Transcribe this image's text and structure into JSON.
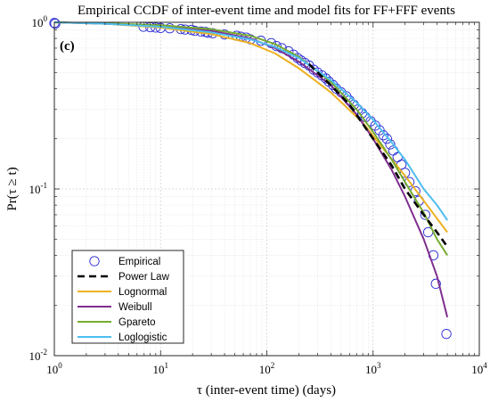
{
  "chart_data": {
    "type": "line",
    "title": "Empirical CCDF of inter-event time and model fits for FF+FFF events",
    "panel_label": "(c)",
    "xlabel": "τ (inter-event time) (days)",
    "ylabel": "Pr(τ ≥ t)",
    "xscale": "log",
    "yscale": "log",
    "xlim": [
      1,
      10000
    ],
    "ylim": [
      0.01,
      1
    ],
    "grid": true,
    "legend_position": "bottom-left",
    "x_ticks": [
      {
        "value": 1,
        "base": "10",
        "exp": "0"
      },
      {
        "value": 10,
        "base": "10",
        "exp": "1"
      },
      {
        "value": 100,
        "base": "10",
        "exp": "2"
      },
      {
        "value": 1000,
        "base": "10",
        "exp": "3"
      },
      {
        "value": 10000,
        "base": "10",
        "exp": "4"
      }
    ],
    "y_ticks": [
      {
        "value": 0.01,
        "base": "10",
        "exp": "-2"
      },
      {
        "value": 0.1,
        "base": "10",
        "exp": "-1"
      },
      {
        "value": 1,
        "base": "10",
        "exp": "0"
      }
    ],
    "series": [
      {
        "name": "Empirical",
        "style": "markers",
        "color": "#2B2BD6",
        "points": [
          [
            1.0,
            0.99
          ],
          [
            1.02,
            0.98
          ],
          [
            6.9,
            0.94
          ],
          [
            8.0,
            0.935
          ],
          [
            9.0,
            0.93
          ],
          [
            10.0,
            0.925
          ],
          [
            12.2,
            0.92
          ],
          [
            15.5,
            0.91
          ],
          [
            17.0,
            0.905
          ],
          [
            19.5,
            0.9
          ],
          [
            21.0,
            0.89
          ],
          [
            24.0,
            0.88
          ],
          [
            26.5,
            0.875
          ],
          [
            28.0,
            0.865
          ],
          [
            31.0,
            0.86
          ],
          [
            40.0,
            0.845
          ],
          [
            52.0,
            0.83
          ],
          [
            57.0,
            0.82
          ],
          [
            64.0,
            0.81
          ],
          [
            70.0,
            0.79
          ],
          [
            88.0,
            0.775
          ],
          [
            110.0,
            0.75
          ],
          [
            123.0,
            0.72
          ],
          [
            138.0,
            0.7
          ],
          [
            160.0,
            0.67
          ],
          [
            178.0,
            0.64
          ],
          [
            195.0,
            0.61
          ],
          [
            210.0,
            0.59
          ],
          [
            228.0,
            0.57
          ],
          [
            250.0,
            0.55
          ],
          [
            276.0,
            0.52
          ],
          [
            300.0,
            0.5
          ],
          [
            330.0,
            0.48
          ],
          [
            360.0,
            0.46
          ],
          [
            385.0,
            0.44
          ],
          [
            420.0,
            0.42
          ],
          [
            450.0,
            0.4
          ],
          [
            500.0,
            0.38
          ],
          [
            560.0,
            0.36
          ],
          [
            600.0,
            0.34
          ],
          [
            660.0,
            0.32
          ],
          [
            720.0,
            0.3
          ],
          [
            790.0,
            0.285
          ],
          [
            850.0,
            0.27
          ],
          [
            950.0,
            0.255
          ],
          [
            1050.0,
            0.24
          ],
          [
            1150.0,
            0.225
          ],
          [
            1250.0,
            0.21
          ],
          [
            1350.0,
            0.2
          ],
          [
            1450.0,
            0.185
          ],
          [
            1550.0,
            0.17
          ],
          [
            1700.0,
            0.155
          ],
          [
            1850.0,
            0.14
          ],
          [
            2000.0,
            0.125
          ],
          [
            2200.0,
            0.11
          ],
          [
            2500.0,
            0.097
          ],
          [
            2700.0,
            0.085
          ],
          [
            3100.0,
            0.07
          ],
          [
            3300.0,
            0.055
          ],
          [
            3700.0,
            0.04
          ],
          [
            3900.0,
            0.027
          ],
          [
            4900.0,
            0.0135
          ]
        ]
      },
      {
        "name": "Power Law",
        "style": "dashed",
        "color": "#000000",
        "points": [
          [
            250,
            0.56
          ],
          [
            400,
            0.42
          ],
          [
            600,
            0.32
          ],
          [
            1000,
            0.2
          ],
          [
            1500,
            0.138
          ],
          [
            2000,
            0.1
          ],
          [
            3000,
            0.07
          ],
          [
            4000,
            0.055
          ],
          [
            5000,
            0.045
          ]
        ]
      },
      {
        "name": "Lognormal",
        "style": "solid",
        "color": "#EDB120",
        "points": [
          [
            1,
            1.0
          ],
          [
            3,
            0.98
          ],
          [
            10,
            0.93
          ],
          [
            30,
            0.85
          ],
          [
            70,
            0.75
          ],
          [
            120,
            0.65
          ],
          [
            200,
            0.53
          ],
          [
            400,
            0.38
          ],
          [
            800,
            0.25
          ],
          [
            1200,
            0.18
          ],
          [
            2000,
            0.12
          ],
          [
            3000,
            0.085
          ],
          [
            5000,
            0.055
          ]
        ]
      },
      {
        "name": "Weibull",
        "style": "solid",
        "color": "#7E2F8E",
        "points": [
          [
            1,
            1.0
          ],
          [
            3,
            0.98
          ],
          [
            10,
            0.95
          ],
          [
            30,
            0.89
          ],
          [
            70,
            0.8
          ],
          [
            120,
            0.7
          ],
          [
            200,
            0.58
          ],
          [
            400,
            0.42
          ],
          [
            700,
            0.28
          ],
          [
            1000,
            0.2
          ],
          [
            1500,
            0.13
          ],
          [
            2000,
            0.09
          ],
          [
            2500,
            0.065
          ],
          [
            3000,
            0.05
          ],
          [
            4000,
            0.03
          ],
          [
            5000,
            0.017
          ]
        ]
      },
      {
        "name": "Gpareto",
        "style": "solid",
        "color": "#77AC30",
        "points": [
          [
            1,
            1.0
          ],
          [
            3,
            0.985
          ],
          [
            10,
            0.96
          ],
          [
            30,
            0.91
          ],
          [
            70,
            0.83
          ],
          [
            120,
            0.74
          ],
          [
            200,
            0.62
          ],
          [
            400,
            0.44
          ],
          [
            700,
            0.3
          ],
          [
            1000,
            0.22
          ],
          [
            1500,
            0.15
          ],
          [
            2000,
            0.11
          ],
          [
            3000,
            0.072
          ],
          [
            4000,
            0.05
          ],
          [
            5000,
            0.04
          ]
        ]
      },
      {
        "name": "Loglogistic",
        "style": "solid",
        "color": "#4DBEEE",
        "points": [
          [
            1,
            1.0
          ],
          [
            3,
            0.98
          ],
          [
            10,
            0.94
          ],
          [
            30,
            0.87
          ],
          [
            70,
            0.79
          ],
          [
            120,
            0.71
          ],
          [
            200,
            0.61
          ],
          [
            400,
            0.45
          ],
          [
            700,
            0.33
          ],
          [
            1000,
            0.26
          ],
          [
            1500,
            0.19
          ],
          [
            2000,
            0.15
          ],
          [
            3000,
            0.1
          ],
          [
            4000,
            0.08
          ],
          [
            5000,
            0.065
          ]
        ]
      }
    ]
  }
}
